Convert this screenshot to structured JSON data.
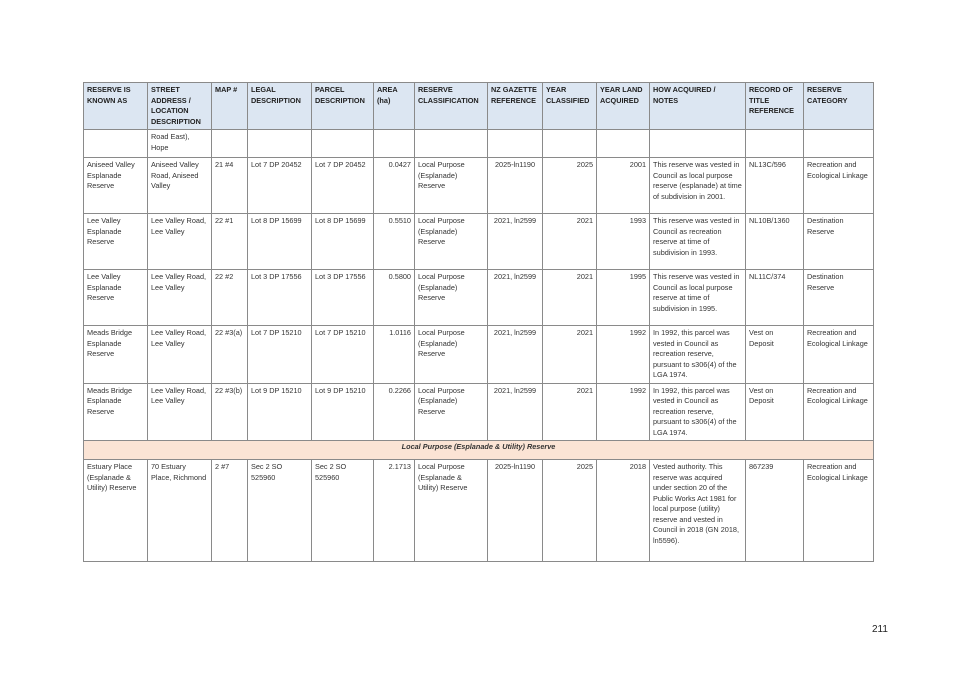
{
  "table": {
    "headers": [
      "RESERVE IS KNOWN AS",
      "STREET ADDRESS / LOCATION DESCRIPTION",
      "MAP #",
      "LEGAL DESCRIPTION",
      "PARCEL DESCRIPTION",
      "AREA (ha)",
      "RESERVE CLASSIFICATION",
      "NZ GAZETTE REFERENCE",
      "YEAR CLASSIFIED",
      "YEAR LAND ACQUIRED",
      "HOW ACQUIRED / NOTES",
      "RECORD OF TITLE REFERENCE",
      "RESERVE CATEGORY"
    ],
    "body": [
      {
        "cells": [
          null,
          "Road East), Hope",
          null,
          null,
          null,
          null,
          null,
          null,
          null,
          null,
          null,
          null,
          null
        ]
      },
      {
        "cells": [
          "Aniseed Valley Esplanade Reserve",
          "Aniseed Valley Road, Aniseed Valley",
          "21 #4",
          "Lot 7 DP 20452",
          "Lot 7 DP 20452",
          "0.0427",
          "Local Purpose (Esplanade) Reserve",
          "2025-ln1190",
          "2025",
          "2001",
          "This reserve was vested in Council as local purpose reserve (esplanade) at time of subdivision in 2001.",
          "NL13C/596",
          "Recreation and Ecological Linkage"
        ]
      },
      {
        "cells": [
          "Lee Valley Esplanade Reserve",
          "Lee Valley Road, Lee Valley",
          "22 #1",
          "Lot 8 DP 15699",
          "Lot 8 DP 15699",
          "0.5510",
          "Local Purpose (Esplanade) Reserve",
          "2021, ln2599",
          "2021",
          "1993",
          "This reserve was vested in Council as recreation reserve at time of subdivision in 1993.",
          "NL10B/1360",
          "Destination Reserve"
        ]
      },
      {
        "cells": [
          "Lee Valley Esplanade Reserve",
          "Lee Valley Road, Lee Valley",
          "22 #2",
          "Lot 3 DP 17556",
          "Lot 3 DP 17556",
          "0.5800",
          "Local Purpose (Esplanade) Reserve",
          "2021, ln2599",
          "2021",
          "1995",
          "This reserve was vested in Council as local purpose reserve at time of subdivision in 1995.",
          "NL11C/374",
          "Destination Reserve"
        ]
      },
      {
        "cells": [
          "Meads Bridge Esplanade Reserve",
          "Lee Valley Road, Lee Valley",
          "22 #3(a)",
          "Lot 7 DP 15210",
          "Lot 7 DP 15210",
          "1.0116",
          "Local Purpose (Esplanade) Reserve",
          "2021, ln2599",
          "2021",
          "1992",
          "In 1992, this parcel was vested in Council as recreation reserve, pursuant to s306(4) of the LGA 1974.",
          "Vest on Deposit",
          "Recreation and Ecological Linkage"
        ]
      },
      {
        "cells": [
          "Meads Bridge Esplanade Reserve",
          "Lee Valley Road, Lee Valley",
          "22 #3(b)",
          "Lot 9 DP 15210",
          "Lot 9 DP 15210",
          "0.2266",
          "Local Purpose (Esplanade) Reserve",
          "2021, ln2599",
          "2021",
          "1992",
          "In 1992, this parcel was vested in Council as recreation reserve, pursuant to s306(4) of the LGA 1974.",
          "Vest on Deposit",
          "Recreation and Ecological Linkage"
        ]
      },
      {
        "section": "Local Purpose (Esplanade & Utility) Reserve"
      },
      {
        "cells": [
          "Estuary Place (Esplanade & Utility) Reserve",
          "70 Estuary Place, Richmond",
          "2 #7",
          "Sec 2 SO 525960",
          "Sec 2 SO 525960",
          "2.1713",
          "Local Purpose (Esplanade & Utility) Reserve",
          "2025-ln1190",
          "2025",
          "2018",
          "Vested authority. This reserve was acquired under section 20 of the Public Works Act 1981 for local purpose (utility) reserve and vested in Council in 2018 (GN 2018, ln5596).",
          "867239",
          "Recreation and Ecological Linkage"
        ]
      }
    ]
  },
  "page_number": "211"
}
